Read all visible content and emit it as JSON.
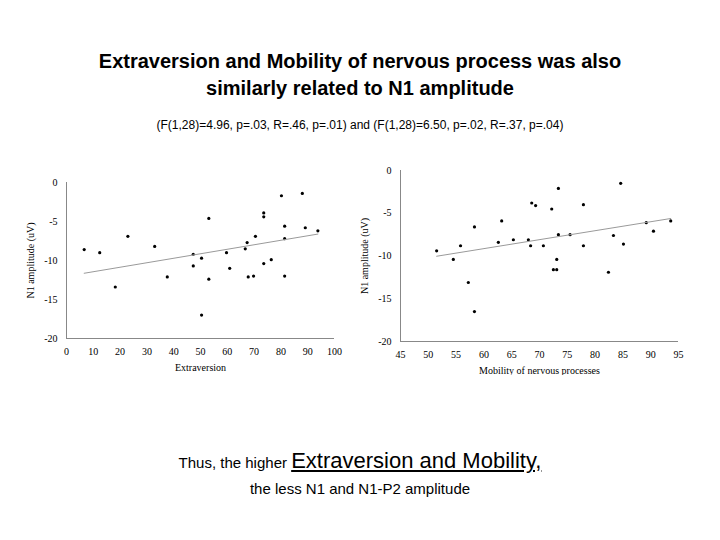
{
  "title": "Extraversion and Mobility of nervous process was also similarly related to N1 amplitude",
  "subtitle": "(F(1,28)=4.96, p=.03, R=.46, p=.01) and (F(1,28)=6.50, p=.02, R=.37, p=.04)",
  "caption": [
    "Thus, the higher",
    "Extraversion and Mobility,",
    "the less N1 and N1-P2 amplitude"
  ],
  "chart_data": [
    {
      "type": "scatter",
      "x_label": "Extraversion",
      "y_label": "N1 amplitude (uV)",
      "xlim": [
        0,
        100
      ],
      "xticks": [
        0,
        10,
        20,
        30,
        40,
        50,
        60,
        70,
        80,
        90,
        100
      ],
      "ylim": [
        -20,
        0
      ],
      "yticks": [
        -20,
        -15,
        -10,
        -5,
        0
      ],
      "series": [
        {
          "color": "#000000",
          "marker": "dot",
          "line_style": "solid",
          "x": [
            6.6,
            12.4,
            18.2,
            22.9,
            32.9,
            37.6,
            47.3,
            47.3,
            50.4,
            50.4,
            53.1,
            53.1,
            59.7,
            60.9,
            66.7,
            67.4,
            67.8,
            69.8,
            70.5,
            73.6,
            73.6,
            73.6,
            76.4,
            80.2,
            81.4,
            81.4,
            81.4,
            88.0,
            89.1,
            93.8
          ],
          "values": [
            -8.6,
            -9.0,
            -13.4,
            -6.9,
            -8.2,
            -12.1,
            -9.2,
            -10.7,
            -9.7,
            -17.0,
            -4.6,
            -12.4,
            -9.0,
            -11.0,
            -8.5,
            -7.7,
            -12.1,
            -12.0,
            -6.9,
            -3.9,
            -4.4,
            -10.4,
            -9.9,
            -1.7,
            -5.6,
            -7.2,
            -12.0,
            -1.4,
            -5.8,
            -6.2
          ]
        }
      ]
    },
    {
      "type": "scatter",
      "x_label": "Mobility of nervous processes",
      "y_label": "N1 amplitude (uV)",
      "xlim": [
        45,
        95
      ],
      "xticks": [
        45,
        50,
        55,
        60,
        65,
        70,
        75,
        80,
        85,
        90,
        95
      ],
      "ylim": [
        -20,
        0
      ],
      "yticks": [
        -20,
        -15,
        -10,
        -5,
        0
      ],
      "series": [
        {
          "color": "#000000",
          "marker": "dot",
          "line_style": "solid",
          "x": [
            51.5,
            54.5,
            55.8,
            57.2,
            58.3,
            58.3,
            63.2,
            62.6,
            65.3,
            68.0,
            68.4,
            68.6,
            69.3,
            70.7,
            72.2,
            72.5,
            73.1,
            73.1,
            73.4,
            73.4,
            75.5,
            77.9,
            77.9,
            82.4,
            83.3,
            84.6,
            85.1,
            89.2,
            90.5,
            93.6
          ],
          "values": [
            -9.4,
            -10.4,
            -8.8,
            -13.1,
            -16.5,
            -6.6,
            -5.9,
            -8.4,
            -8.1,
            -8.1,
            -8.8,
            -3.8,
            -4.1,
            -8.8,
            -4.5,
            -11.6,
            -11.6,
            -10.4,
            -2.1,
            -7.5,
            -7.5,
            -8.8,
            -4.0,
            -11.9,
            -7.6,
            -1.5,
            -8.6,
            -6.1,
            -7.1,
            -5.9
          ]
        }
      ]
    }
  ]
}
